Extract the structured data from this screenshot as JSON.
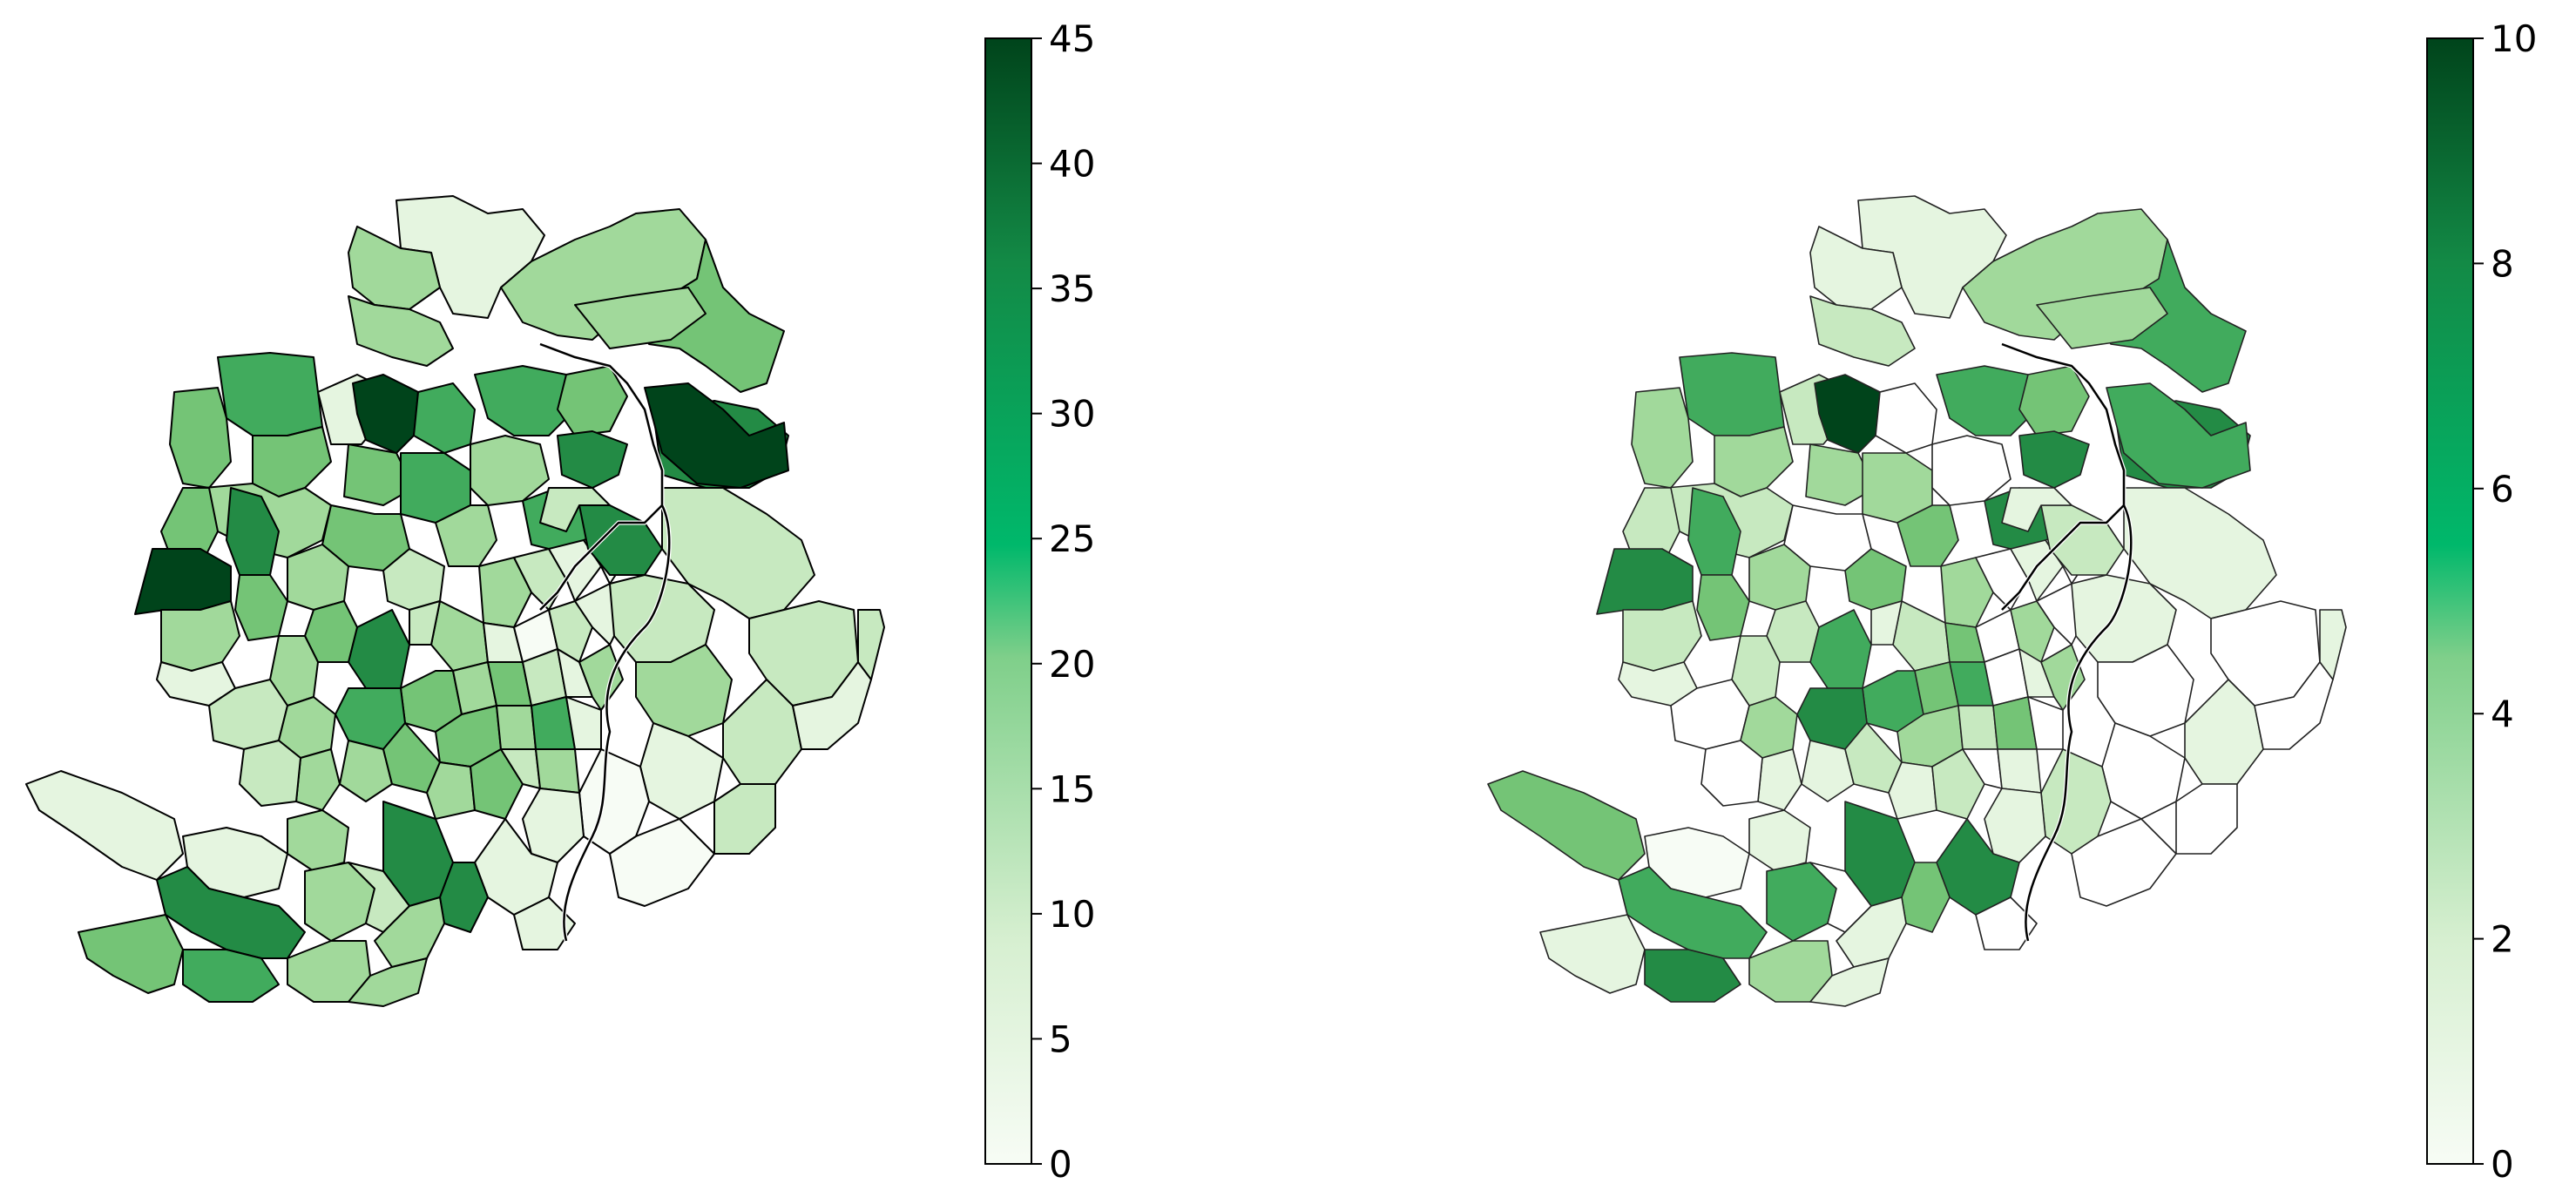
{
  "panels": [
    {
      "id": "left",
      "colorbar": {
        "cmap": "Greens",
        "min": 0,
        "max": 45,
        "ticks": [
          {
            "value": 0,
            "label": "0"
          },
          {
            "value": 5,
            "label": "5"
          },
          {
            "value": 10,
            "label": "10"
          },
          {
            "value": 15,
            "label": "15"
          },
          {
            "value": 20,
            "label": "20"
          },
          {
            "value": 25,
            "label": "25"
          },
          {
            "value": 30,
            "label": "30"
          },
          {
            "value": 35,
            "label": "35"
          },
          {
            "value": 40,
            "label": "40"
          },
          {
            "value": 45,
            "label": "45"
          }
        ]
      }
    },
    {
      "id": "right",
      "colorbar": {
        "cmap": "Greens",
        "min": 0,
        "max": 10,
        "ticks": [
          {
            "value": 0,
            "label": "0"
          },
          {
            "value": 2,
            "label": "2"
          },
          {
            "value": 4,
            "label": "4"
          },
          {
            "value": 6,
            "label": "6"
          },
          {
            "value": 8,
            "label": "8"
          },
          {
            "value": 10,
            "label": "10"
          }
        ]
      }
    }
  ],
  "colors": {
    "g0": "#f7fcf5",
    "g1": "#e5f5e0",
    "g2": "#c7e9c0",
    "g3": "#a1d99b",
    "g4": "#74c476",
    "g5": "#41ab5d",
    "g6": "#238b45",
    "g7": "#006d2c",
    "g8": "#00441b"
  }
}
